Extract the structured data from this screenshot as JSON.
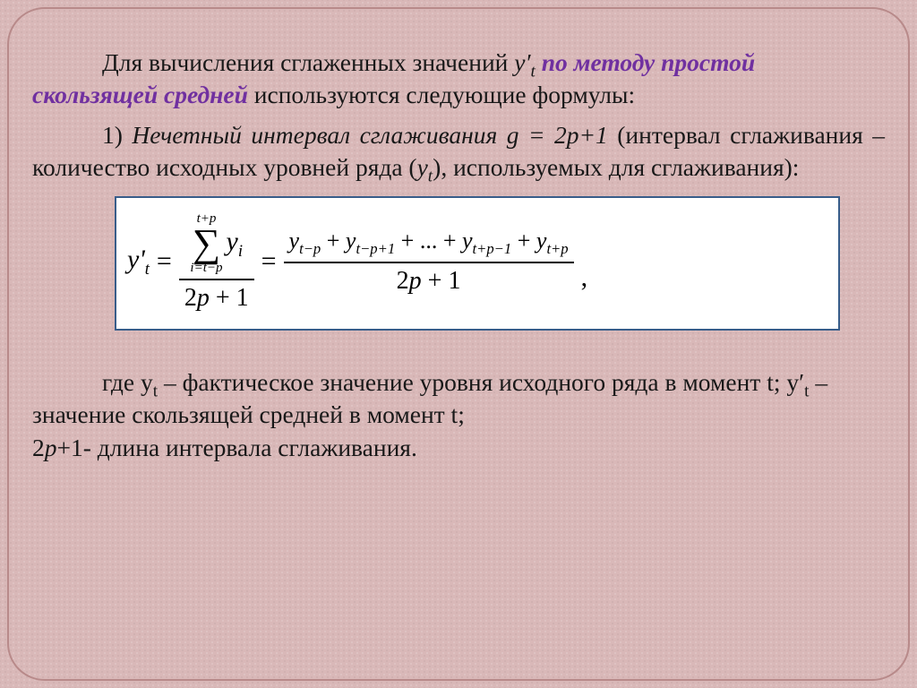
{
  "colors": {
    "background": "#d9b8b8",
    "border": "#b88a8a",
    "formula_border": "#385D8A",
    "formula_bg": "#ffffff",
    "text": "#181818",
    "accent_purple": "#7030A0"
  },
  "typography": {
    "body_font": "Times New Roman",
    "body_size_pt": 21,
    "formula_size_pt": 22
  },
  "p1": {
    "lead": "Для вычисления сглаженных значений ",
    "var": "y′",
    "var_sub": "t",
    "accent": " по методу простой скользящей средней",
    "tail": " используются следующие формулы:"
  },
  "p2": {
    "num_label": "1) ",
    "ital_a": "Нечетный интервал сглаживания g = 2p+1",
    "plain_a": " (интервал сглаживания – количество исходных уровней ряда (",
    "var": "y",
    "var_sub": "t",
    "plain_b": "), используемых для сглаживания):"
  },
  "formula": {
    "lhs_var": "y'",
    "lhs_sub": "t",
    "sum_upper": "t+p",
    "sum_lower": "i=t−p",
    "sum_arg": "y",
    "sum_arg_sub": "i",
    "den": "2p + 1",
    "rhs_terms": {
      "t1": "y",
      "t1_sub": "t−p",
      "t2": "y",
      "t2_sub": "t−p+1",
      "dots": " + ... + ",
      "t3": "y",
      "t3_sub": "t+p−1",
      "t4": "y",
      "t4_sub": "t+p"
    },
    "rhs_den": "2p + 1",
    "trailing": ","
  },
  "p3": {
    "a": "где y",
    "a_sub": "t",
    "b": " – фактическое значение уровня исходного ряда в момент t; y′",
    "b_sub": "t",
    "c": " – значение скользящей средней в момент t;",
    "line2_a": "2",
    "line2_b": "p",
    "line2_c": "+1- длина интервала сглаживания."
  }
}
